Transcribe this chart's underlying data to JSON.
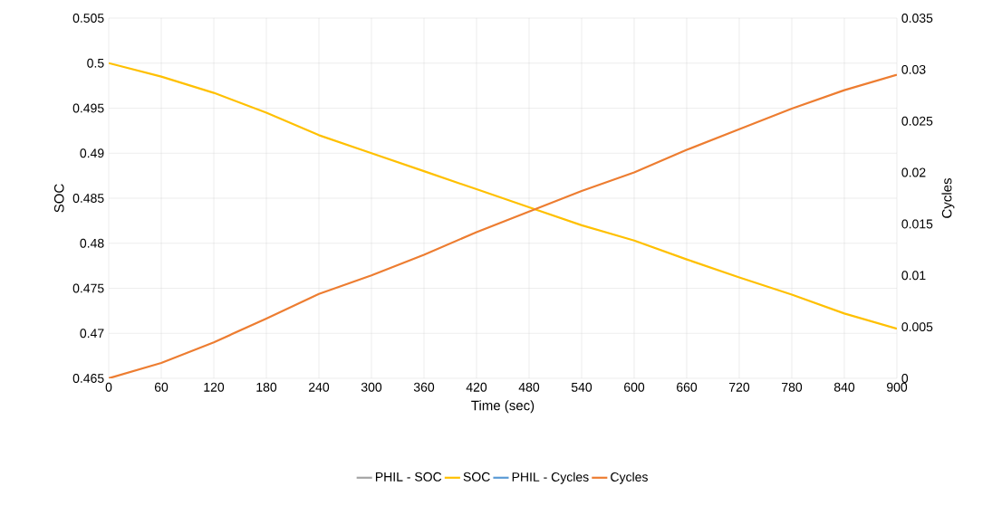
{
  "chart_data": {
    "type": "line",
    "xlabel": "Time (sec)",
    "ylabel": "SOC",
    "y2label": "Cycles",
    "x": [
      0,
      60,
      120,
      180,
      240,
      300,
      360,
      420,
      480,
      540,
      600,
      660,
      720,
      780,
      840,
      900
    ],
    "series": [
      {
        "name": "PHIL - SOC",
        "color": "#a5a5a5",
        "values": [
          null,
          null,
          null,
          null,
          null,
          null,
          null,
          null,
          null,
          null,
          null,
          null,
          null,
          null,
          null,
          null
        ]
      },
      {
        "name": "SOC",
        "color": "#ffc000",
        "values": [
          0.5,
          0.4985,
          0.4967,
          0.4945,
          0.492,
          0.49,
          0.488,
          0.486,
          0.484,
          0.482,
          0.4803,
          0.4782,
          0.4762,
          0.4743,
          0.4722,
          0.4705
        ]
      },
      {
        "name": "PHIL - Cycles",
        "color": "#5b9bd5",
        "axis": "y2",
        "values": [
          null,
          null,
          null,
          null,
          null,
          null,
          null,
          null,
          null,
          null,
          null,
          null,
          null,
          null,
          null,
          null
        ]
      },
      {
        "name": "Cycles",
        "color": "#ed7d31",
        "axis": "y2",
        "values": [
          0,
          0.0015,
          0.0035,
          0.0058,
          0.0082,
          0.01,
          0.012,
          0.0142,
          0.0162,
          0.0182,
          0.02,
          0.0222,
          0.0242,
          0.0262,
          0.028,
          0.0295
        ]
      }
    ],
    "xlim": [
      0,
      900
    ],
    "xticks": [
      0,
      60,
      120,
      180,
      240,
      300,
      360,
      420,
      480,
      540,
      600,
      660,
      720,
      780,
      840,
      900
    ],
    "ylim": [
      0.465,
      0.505
    ],
    "yticks": [
      0.465,
      0.47,
      0.475,
      0.48,
      0.485,
      0.49,
      0.495,
      0.5,
      0.505
    ],
    "y2lim": [
      0,
      0.035
    ],
    "y2ticks": [
      0,
      0.005,
      0.01,
      0.015,
      0.02,
      0.025,
      0.03,
      0.035
    ],
    "grid": true,
    "legend": "bottom",
    "marker": "none",
    "line_style": "solid"
  }
}
